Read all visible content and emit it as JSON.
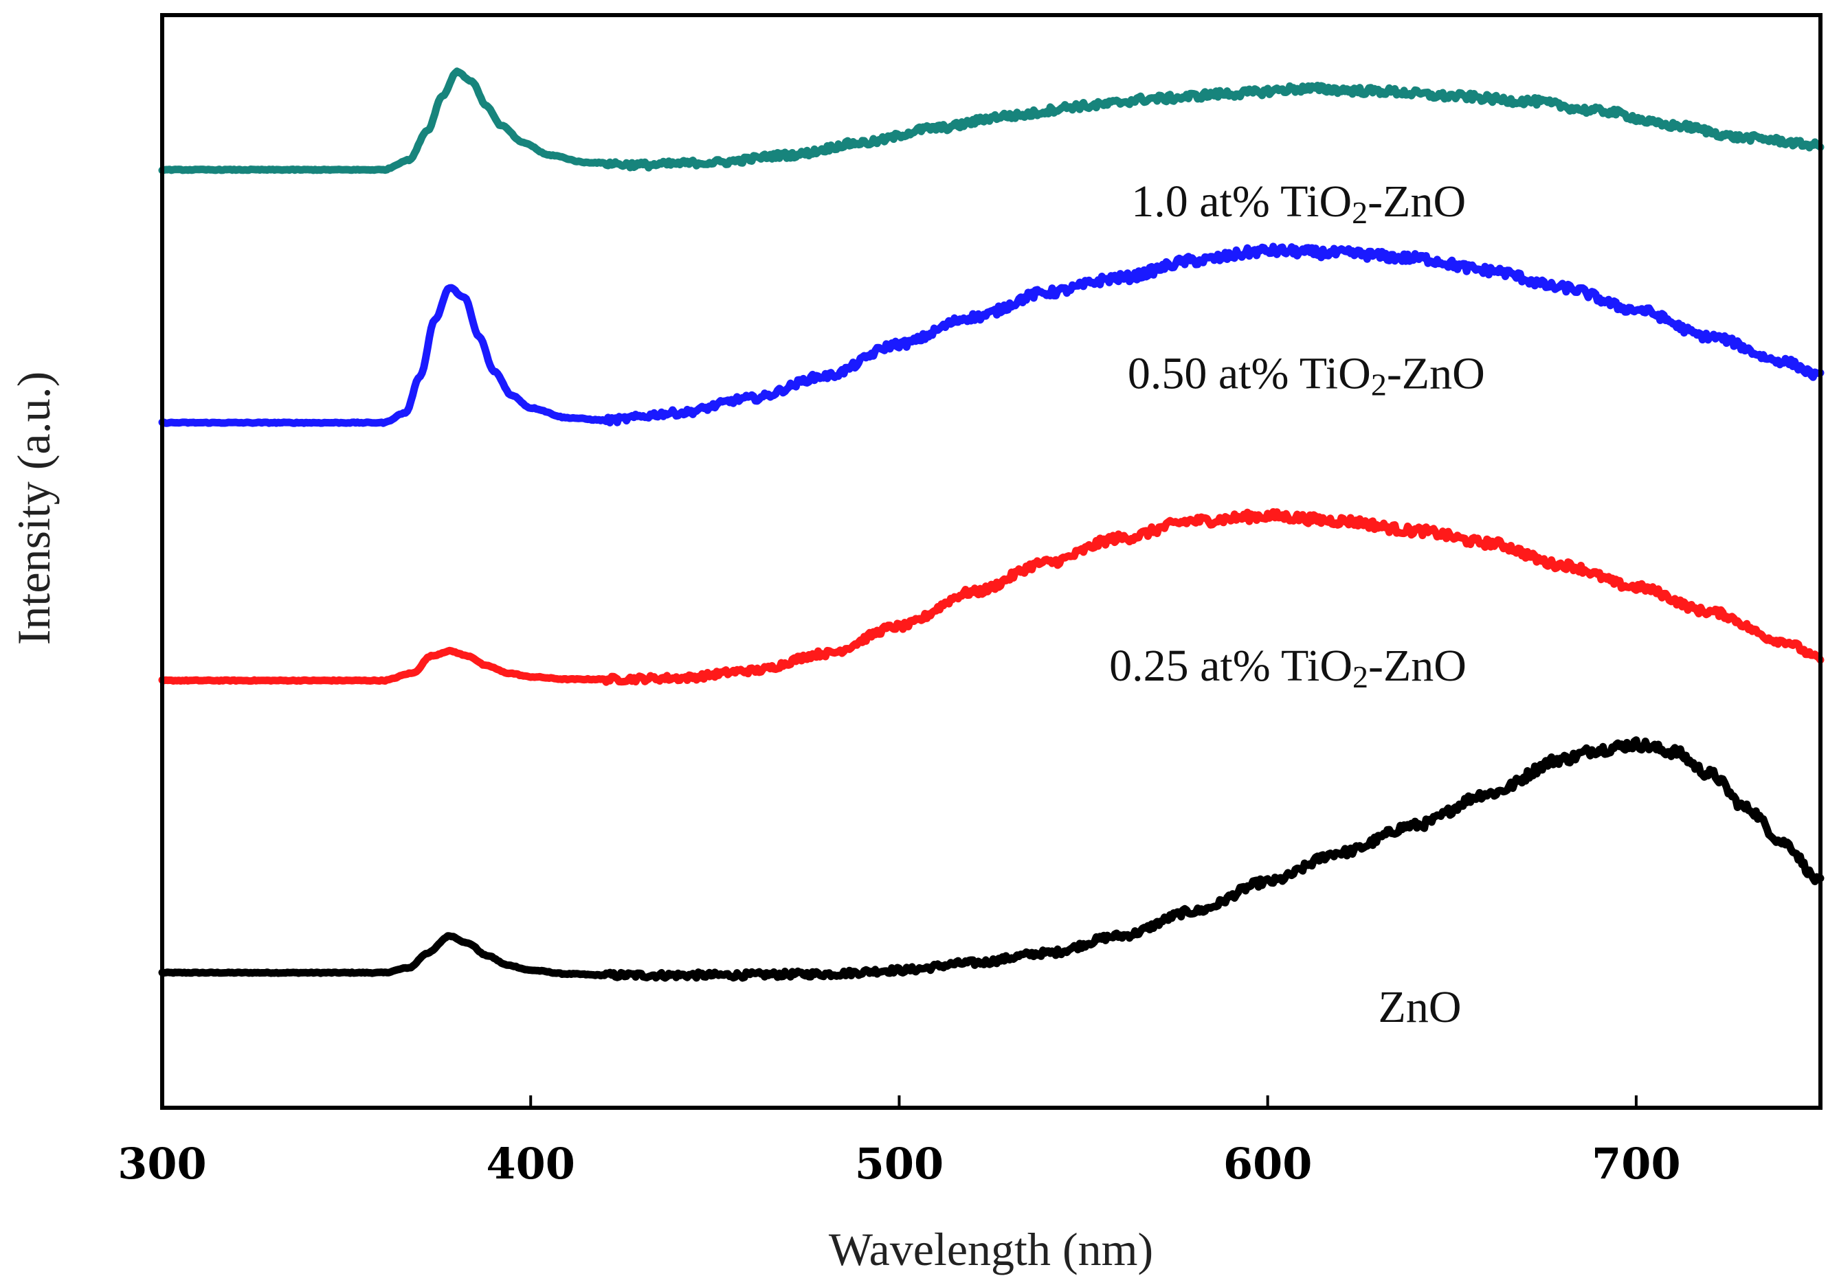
{
  "chart_data": {
    "type": "line",
    "title": "",
    "xlabel": "Wavelength (nm)",
    "ylabel": "Intensity (a.u.)",
    "xlim": [
      300,
      750
    ],
    "ylim": [
      0,
      4.45
    ],
    "xticks": [
      300,
      400,
      500,
      600,
      700
    ],
    "xtick_labels": [
      "300",
      "400",
      "500",
      "600",
      "700"
    ],
    "yticks_shown": false,
    "grid": false,
    "legend": "inline labels",
    "series": [
      {
        "name": "ZnO",
        "label_main": "ZnO",
        "label_sub": "",
        "label_tail": "",
        "label_anchor": [
          630,
          0.35
        ],
        "color": "#000000",
        "x": [
          300,
          360,
          367,
          372,
          378,
          383,
          388,
          394,
          400,
          410,
          420,
          450,
          480,
          500,
          520,
          540,
          560,
          580,
          600,
          620,
          640,
          660,
          680,
          690,
          700,
          710,
          720,
          730,
          740,
          750
        ],
        "y": [
          0.55,
          0.55,
          0.57,
          0.63,
          0.7,
          0.67,
          0.62,
          0.58,
          0.56,
          0.545,
          0.54,
          0.54,
          0.545,
          0.56,
          0.59,
          0.63,
          0.7,
          0.8,
          0.92,
          1.04,
          1.15,
          1.28,
          1.42,
          1.46,
          1.48,
          1.45,
          1.36,
          1.22,
          1.08,
          0.92
        ]
      },
      {
        "name": "0.25 at% TiO2-ZnO",
        "label_main": "0.25 at% TiO",
        "label_sub": "2",
        "label_tail": "-ZnO",
        "label_anchor": [
          557,
          1.74
        ],
        "color": "#ff1a1a",
        "x": [
          300,
          360,
          368,
          373,
          378,
          383,
          388,
          394,
          400,
          410,
          420,
          440,
          460,
          480,
          500,
          520,
          540,
          560,
          580,
          600,
          620,
          640,
          660,
          680,
          700,
          720,
          740,
          750
        ],
        "y": [
          1.74,
          1.74,
          1.77,
          1.84,
          1.86,
          1.84,
          1.8,
          1.77,
          1.755,
          1.745,
          1.745,
          1.75,
          1.78,
          1.85,
          1.96,
          2.1,
          2.22,
          2.32,
          2.39,
          2.41,
          2.39,
          2.35,
          2.3,
          2.21,
          2.12,
          2.02,
          1.9,
          1.83
        ]
      },
      {
        "name": "0.50 at% TiO2-ZnO",
        "label_main": "0.50 at% TiO",
        "label_sub": "2",
        "label_tail": "-ZnO",
        "label_anchor": [
          562,
          2.93
        ],
        "color": "#1a1aff",
        "x": [
          300,
          360,
          366,
          370,
          374,
          378,
          382,
          386,
          390,
          395,
          400,
          410,
          420,
          440,
          460,
          480,
          500,
          520,
          540,
          560,
          580,
          600,
          620,
          640,
          660,
          680,
          700,
          720,
          740,
          750
        ],
        "y": [
          2.79,
          2.79,
          2.83,
          2.98,
          3.21,
          3.34,
          3.3,
          3.14,
          3.0,
          2.9,
          2.85,
          2.81,
          2.8,
          2.83,
          2.89,
          2.98,
          3.11,
          3.22,
          3.32,
          3.38,
          3.45,
          3.49,
          3.48,
          3.46,
          3.41,
          3.34,
          3.25,
          3.14,
          3.04,
          2.98
        ]
      },
      {
        "name": "1.0 at% TiO2-ZnO",
        "label_main": "1.0 at% TiO",
        "label_sub": "2",
        "label_tail": "-ZnO",
        "label_anchor": [
          563,
          3.63
        ],
        "color": "#17847c",
        "x": [
          300,
          360,
          367,
          372,
          376,
          380,
          384,
          388,
          392,
          398,
          405,
          415,
          430,
          450,
          470,
          490,
          510,
          530,
          550,
          570,
          590,
          610,
          630,
          650,
          670,
          690,
          710,
          730,
          750
        ],
        "y": [
          3.82,
          3.82,
          3.86,
          3.98,
          4.12,
          4.22,
          4.18,
          4.08,
          4.0,
          3.93,
          3.88,
          3.85,
          3.84,
          3.85,
          3.88,
          3.93,
          3.99,
          4.04,
          4.08,
          4.11,
          4.13,
          4.15,
          4.14,
          4.12,
          4.1,
          4.06,
          4.0,
          3.95,
          3.92
        ]
      }
    ]
  }
}
